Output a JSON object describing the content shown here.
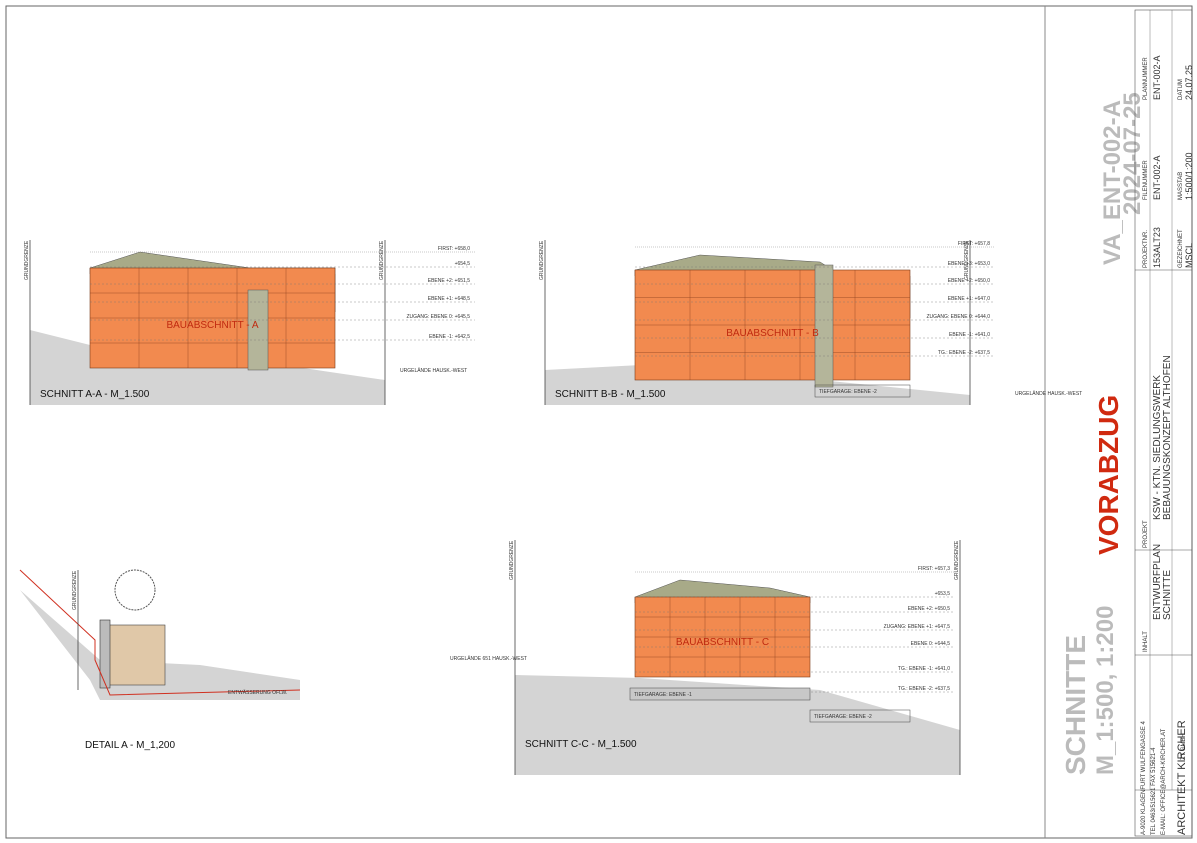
{
  "sections": [
    {
      "title": "SCHNITT A-A - M_1.500",
      "label": "BAUABSCHNITT - A",
      "boundary": "GRUNDGRENZE",
      "terrain": "URGELÄNDE HAUSK.-WEST",
      "levels": [
        "FIRST: +658,0",
        "+654,5",
        "EBENE +2: +651,5",
        "EBENE +1: +648,5",
        "ZUGANG: EBENE 0: +645,5",
        "EBENE -1: +642,5"
      ]
    },
    {
      "title": "SCHNITT B-B - M_1.500",
      "label": "BAUABSCHNITT - B",
      "boundary": "GRUNDGRENZE",
      "terrain": "URGELÄNDE HAUSK.-WEST",
      "garage": "TIEFGARAGE: EBENE -2",
      "levels": [
        "FIRST: +657,8",
        "EBENE +3: +653,0",
        "EBENE +2: +650,0",
        "EBENE +1: +647,0",
        "ZUGANG: EBENE 0: +644,0",
        "EBENE -1: +641,0",
        "TG.: EBENE -2: +637,5"
      ]
    },
    {
      "title": "SCHNITT C-C - M_1.500",
      "label": "BAUABSCHNITT - C",
      "boundary": "GRUNDGRENZE",
      "terrain": "URGELÄNDE 651 HAUSK.-WEST",
      "garage": "TIEFGARAGE: EBENE -2",
      "garage2": "TIEFGARAGE: EBENE -1",
      "levels": [
        "FIRST: +657,3",
        "+653,5",
        "EBENE +2: +650,5",
        "ZUGANG: EBENE +1: +647,5",
        "EBENE 0: +644,5",
        "TG.: EBENE -1: +641,0",
        "TG.: EBENE -2: +637,5"
      ]
    }
  ],
  "detail": {
    "title": "DETAIL A - M_1,200",
    "boundary": "GRUNDGRENZE",
    "drainage": "ENTWÄSSERUNG OFLW."
  },
  "title_block": {
    "plan_id": "VA_ENT-002-A",
    "date": "2024-07-25",
    "stamp": "VORABZUG",
    "content": "SCHNITTE",
    "scale": "M_1:500, 1:200",
    "project_no_label": "PROJEKTNR.",
    "project_no": "153ALT23",
    "file_label": "FILENUMMER",
    "file": "ENT-002-A",
    "plan_label": "PLANNUMMER",
    "plan": "ENT-002-A",
    "drawn_label": "GEZEICHNET",
    "drawn": "MSCL",
    "scale_label": "MASSTAB",
    "scale_value": "1:500/1:200",
    "date_label": "DATUM",
    "date_value": "24.07.25",
    "project_label": "PROJEKT",
    "project_1": "KSW - KTN. SIEDLUNGSWERK",
    "project_2": "BEBAUUNGSKONZEPT ALTHOFEN",
    "content_label": "INHALT",
    "content_1": "ENTWURFPLAN",
    "content_2": "SCHNITTE",
    "architect": "ARCHITEKT KIRCHER",
    "firm": "ZT GMBH",
    "address": "A-9020 KLAGENFURT WULFENGASSE 4",
    "phone": "TEL 0463/515621 FAX 515621-4",
    "email": "E-MAIL: OFFICE@ARCH-KIRCHER.AT"
  }
}
